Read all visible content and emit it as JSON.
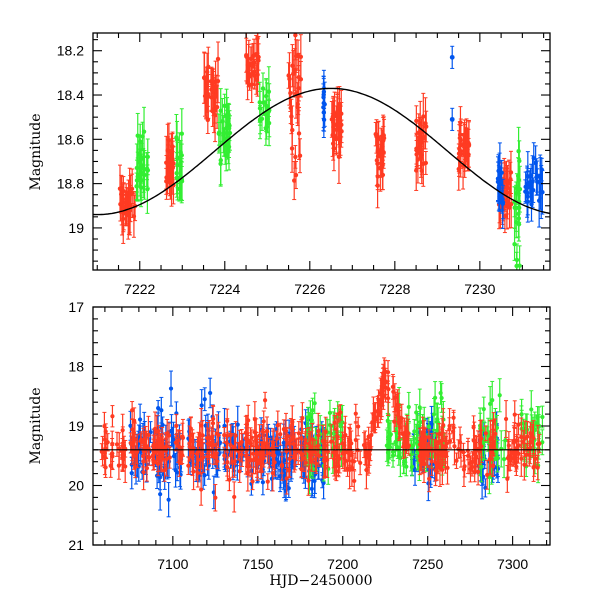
{
  "chart_data": [
    {
      "type": "scatter",
      "panel": "top",
      "title": "",
      "xlabel": "",
      "ylabel": "Magnitude",
      "xlim": [
        7220.9,
        7231.65
      ],
      "ylim": [
        19.19,
        18.12
      ],
      "y_inverted": true,
      "xticks": [
        7222,
        7224,
        7226,
        7228,
        7230
      ],
      "xtick_labels": [
        "7222",
        "7224",
        "7226",
        "7228",
        "7230"
      ],
      "yticks": [
        18.2,
        18.4,
        18.6,
        18.8,
        19
      ],
      "ytick_labels": [
        "18.2",
        "18.4",
        "18.6",
        "18.8",
        "19"
      ],
      "grid": false,
      "legend": "none",
      "model_curve": {
        "name": "sinusoidal fit",
        "color": "#000000",
        "peak_x": 7226.5,
        "peak_mag": 18.37,
        "points": [
          [
            7220.9,
            18.94
          ],
          [
            7222,
            18.83
          ],
          [
            7223,
            18.67
          ],
          [
            7224,
            18.53
          ],
          [
            7225,
            18.43
          ],
          [
            7226,
            18.38
          ],
          [
            7226.5,
            18.37
          ],
          [
            7227,
            18.38
          ],
          [
            7228,
            18.45
          ],
          [
            7229,
            18.56
          ],
          [
            7230,
            18.7
          ],
          [
            7231,
            18.85
          ],
          [
            7231.65,
            18.94
          ]
        ]
      },
      "series": [
        {
          "name": "red",
          "color": "#ff3b22",
          "clusters": [
            {
              "x": [
                7221.5,
                7221.9
              ],
              "mag_center": 18.9,
              "spread": 0.08,
              "n": 28
            },
            {
              "x": [
                7222.6,
                7222.85
              ],
              "mag_center": 18.72,
              "spread": 0.08,
              "n": 24
            },
            {
              "x": [
                7223.5,
                7223.85
              ],
              "mag_center": 18.4,
              "spread": 0.12,
              "n": 28
            },
            {
              "x": [
                7224.5,
                7224.8
              ],
              "mag_center": 18.25,
              "spread": 0.08,
              "n": 22
            },
            {
              "x": [
                7225.5,
                7225.8
              ],
              "mag_center": 18.45,
              "spread": 0.22,
              "n": 26
            },
            {
              "x": [
                7226.5,
                7226.75
              ],
              "mag_center": 18.55,
              "spread": 0.1,
              "n": 26
            },
            {
              "x": [
                7227.55,
                7227.75
              ],
              "mag_center": 18.65,
              "spread": 0.1,
              "n": 24
            },
            {
              "x": [
                7228.5,
                7228.75
              ],
              "mag_center": 18.62,
              "spread": 0.1,
              "n": 26
            },
            {
              "x": [
                7229.5,
                7229.75
              ],
              "mag_center": 18.64,
              "spread": 0.08,
              "n": 26
            },
            {
              "x": [
                7230.45,
                7230.75
              ],
              "mag_center": 18.85,
              "spread": 0.08,
              "n": 24
            }
          ]
        },
        {
          "name": "green",
          "color": "#33ee33",
          "clusters": [
            {
              "x": [
                7221.9,
                7222.2
              ],
              "mag_center": 18.72,
              "spread": 0.12,
              "n": 26
            },
            {
              "x": [
                7222.85,
                7223.0
              ],
              "mag_center": 18.7,
              "spread": 0.1,
              "n": 16
            },
            {
              "x": [
                7223.85,
                7224.15
              ],
              "mag_center": 18.55,
              "spread": 0.1,
              "n": 26
            },
            {
              "x": [
                7224.8,
                7225.05
              ],
              "mag_center": 18.48,
              "spread": 0.1,
              "n": 18
            },
            {
              "x": [
                7230.8,
                7230.95
              ],
              "mag_center": 18.9,
              "spread": 0.25,
              "n": 20
            }
          ]
        },
        {
          "name": "blue",
          "color": "#0055ee",
          "clusters": [
            {
              "x": [
                7226.3,
                7226.35
              ],
              "mag_center": 18.45,
              "spread": 0.07,
              "n": 8
            },
            {
              "x": [
                7230.4,
                7230.55
              ],
              "mag_center": 18.8,
              "spread": 0.1,
              "n": 16
            },
            {
              "x": [
                7231.05,
                7231.5
              ],
              "mag_center": 18.8,
              "spread": 0.1,
              "n": 26
            }
          ],
          "outliers": [
            [
              7229.35,
              18.23
            ],
            [
              7229.35,
              18.51
            ]
          ]
        }
      ]
    },
    {
      "type": "scatter",
      "panel": "bottom",
      "title": "",
      "xlabel": "HJD−2450000",
      "ylabel": "Magnitude",
      "xlim": [
        7053,
        7322
      ],
      "ylim": [
        21,
        17
      ],
      "y_inverted": true,
      "xticks": [
        7100,
        7150,
        7200,
        7250,
        7300
      ],
      "xtick_labels": [
        "7100",
        "7150",
        "7200",
        "7250",
        "7300"
      ],
      "yticks": [
        17,
        18,
        19,
        20,
        21
      ],
      "ytick_labels": [
        "17",
        "18",
        "19",
        "20",
        "21"
      ],
      "grid": false,
      "legend": "none",
      "baseline": {
        "color": "#000000",
        "mag": 19.4
      },
      "series": [
        {
          "name": "red",
          "color": "#ff3b22",
          "segments": [
            [
              7058,
              7072
            ],
            [
              7075,
              7106
            ],
            [
              7109,
              7128
            ],
            [
              7130,
              7186
            ],
            [
              7188,
              7215
            ],
            [
              7245,
              7290
            ],
            [
              7296,
              7316
            ]
          ],
          "mag_center": 19.4,
          "spread": 0.2,
          "flare": {
            "x": [
              7215,
              7240
            ],
            "peak_x": 7225,
            "peak_mag": 18.2
          }
        },
        {
          "name": "blue",
          "color": "#0055ee",
          "segments": [
            [
              7075,
              7106
            ],
            [
              7109,
              7128
            ],
            [
              7130,
              7190
            ],
            [
              7240,
              7255
            ],
            [
              7280,
              7292
            ]
          ],
          "mag_center": 19.45,
          "spread": 0.25
        },
        {
          "name": "green",
          "color": "#33ee33",
          "segments": [
            [
              7178,
              7200
            ],
            [
              7225,
              7260
            ],
            [
              7280,
              7296
            ],
            [
              7305,
              7318
            ]
          ],
          "mag_center": 19.2,
          "spread": 0.3
        }
      ]
    }
  ]
}
